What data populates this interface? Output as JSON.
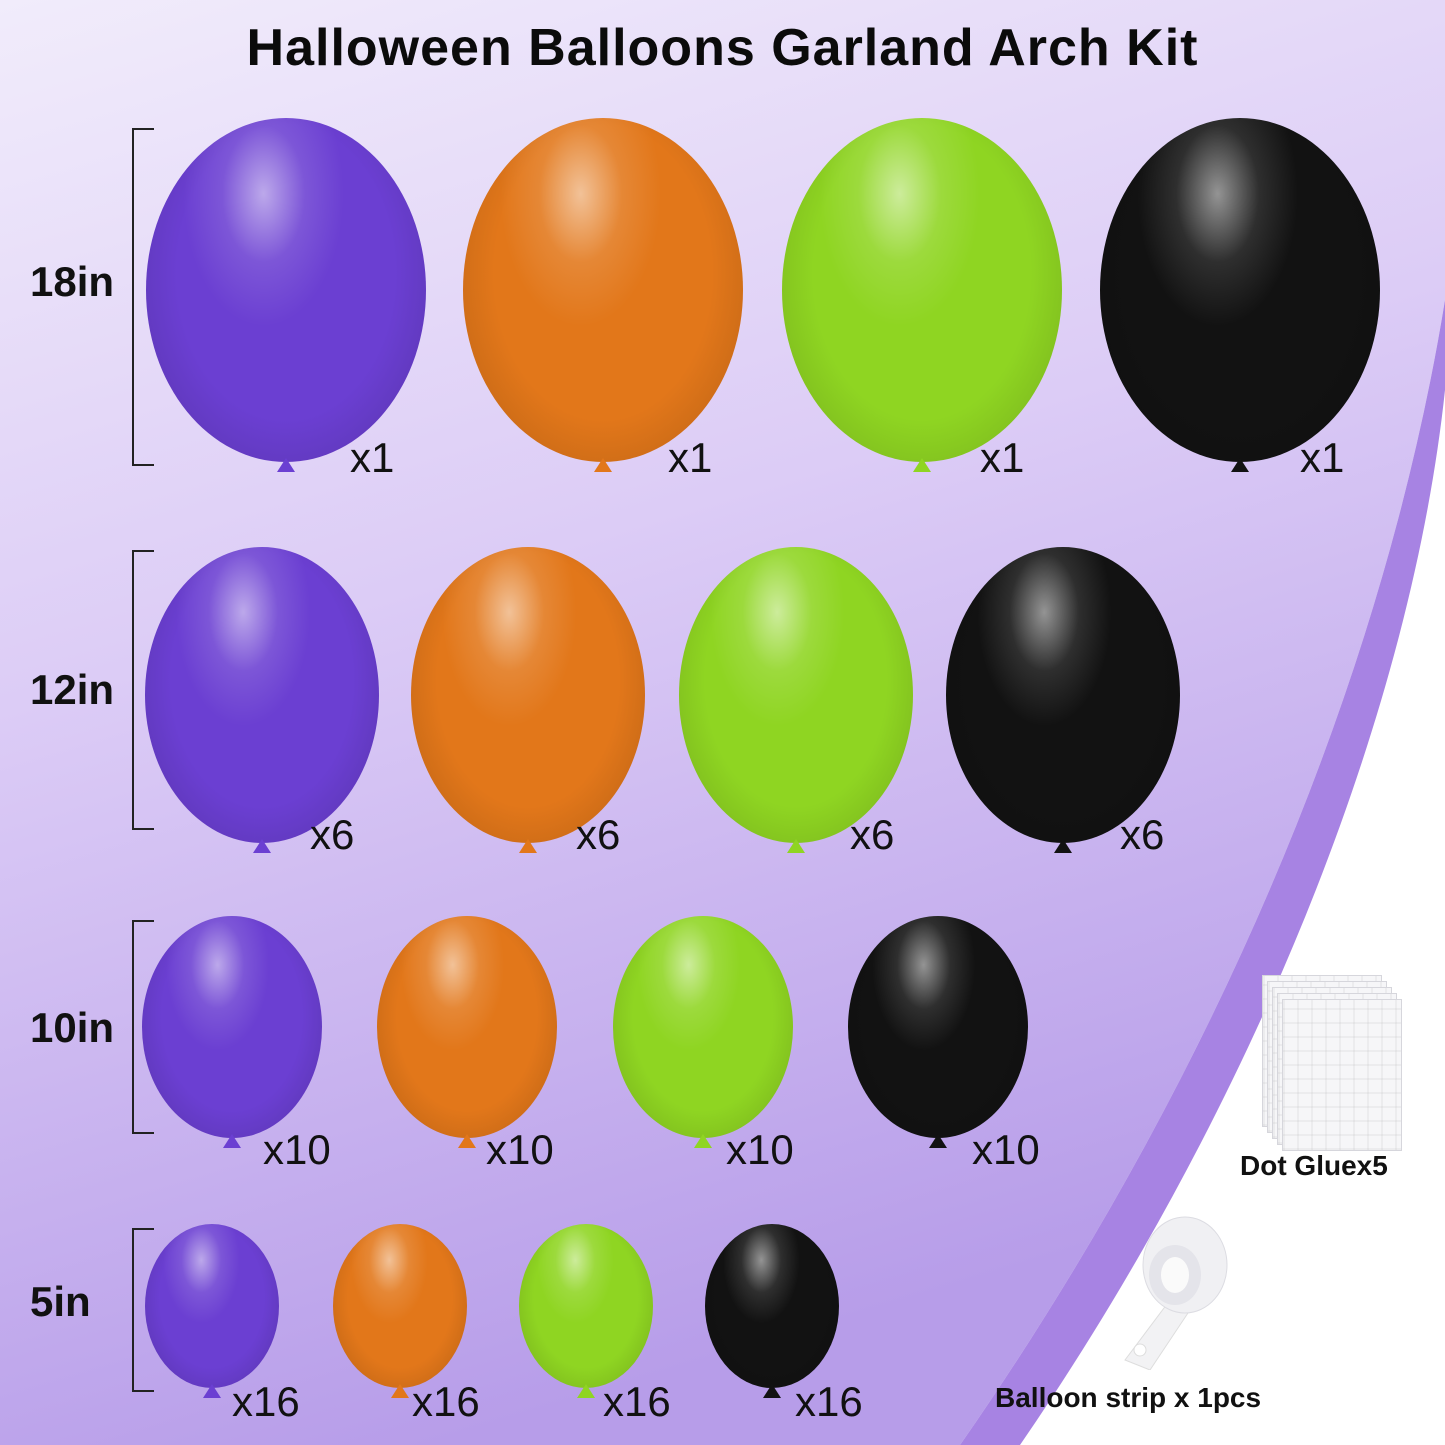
{
  "title": "Halloween Balloons Garland Arch Kit",
  "colors": {
    "purple": "#6b3fd2",
    "orange": "#e2771a",
    "green": "#8fd522",
    "black": "#121212",
    "background_lavender": "#e4d9f7",
    "band_purple": "#a885e4"
  },
  "rows": [
    {
      "size": "18in",
      "balloons": [
        {
          "color": "purple",
          "qty": "x1"
        },
        {
          "color": "orange",
          "qty": "x1"
        },
        {
          "color": "green",
          "qty": "x1"
        },
        {
          "color": "black",
          "qty": "x1"
        }
      ]
    },
    {
      "size": "12in",
      "balloons": [
        {
          "color": "purple",
          "qty": "x6"
        },
        {
          "color": "orange",
          "qty": "x6"
        },
        {
          "color": "green",
          "qty": "x6"
        },
        {
          "color": "black",
          "qty": "x6"
        }
      ]
    },
    {
      "size": "10in",
      "balloons": [
        {
          "color": "purple",
          "qty": "x10"
        },
        {
          "color": "orange",
          "qty": "x10"
        },
        {
          "color": "green",
          "qty": "x10"
        },
        {
          "color": "black",
          "qty": "x10"
        }
      ]
    },
    {
      "size": "5in",
      "balloons": [
        {
          "color": "purple",
          "qty": "x16"
        },
        {
          "color": "orange",
          "qty": "x16"
        },
        {
          "color": "green",
          "qty": "x16"
        },
        {
          "color": "black",
          "qty": "x16"
        }
      ]
    }
  ],
  "accessories": {
    "dot_glue": {
      "label": "Dot Gluex5",
      "icon": "dot-glue-sheets-icon"
    },
    "balloon_strip": {
      "label": "Balloon strip x 1pcs",
      "icon": "balloon-strip-roll-icon"
    }
  }
}
